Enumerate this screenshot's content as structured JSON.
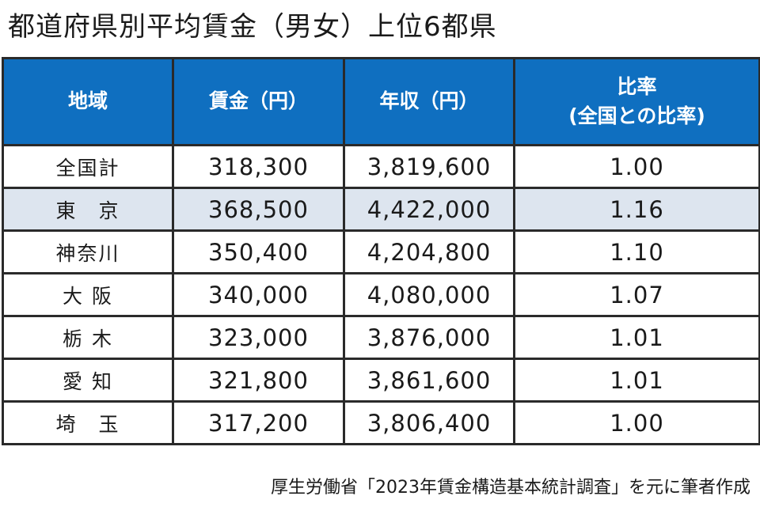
{
  "title": "都道府県別平均賃金（男女）上位6都県",
  "table": {
    "headers": {
      "region": "地域",
      "wage": "賃金（円）",
      "annual": "年収（円）",
      "ratio_line1": "比率",
      "ratio_line2": "(全国との比率)"
    },
    "rows": [
      {
        "region": "全国計",
        "wage": "318,300",
        "annual": "3,819,600",
        "ratio": "1.00",
        "highlight": false
      },
      {
        "region": "東　京",
        "wage": "368,500",
        "annual": "4,422,000",
        "ratio": "1.16",
        "highlight": true
      },
      {
        "region": "神奈川",
        "wage": "350,400",
        "annual": "4,204,800",
        "ratio": "1.10",
        "highlight": false
      },
      {
        "region": "大 阪",
        "wage": "340,000",
        "annual": "4,080,000",
        "ratio": "1.07",
        "highlight": false
      },
      {
        "region": "栃 木",
        "wage": "323,000",
        "annual": "3,876,000",
        "ratio": "1.01",
        "highlight": false
      },
      {
        "region": "愛 知",
        "wage": "321,800",
        "annual": "3,861,600",
        "ratio": "1.01",
        "highlight": false
      },
      {
        "region": "埼　玉",
        "wage": "317,200",
        "annual": "3,806,400",
        "ratio": "1.00",
        "highlight": false
      }
    ]
  },
  "source": "厚生労働省「2023年賃金構造基本統計調査」を元に筆者作成",
  "colors": {
    "header_bg": "#0f6fc0",
    "highlight_row_bg": "#dde5ef",
    "border": "#2a2a2a"
  }
}
